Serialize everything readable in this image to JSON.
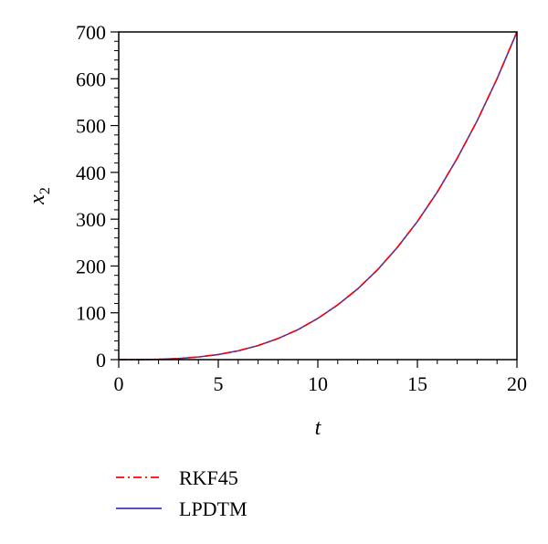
{
  "chart_data": {
    "type": "line",
    "xlabel": "t",
    "ylabel": {
      "main": "x",
      "subscript": "2"
    },
    "xlim": [
      0,
      20
    ],
    "ylim": [
      0,
      700
    ],
    "xticks": [
      0,
      5,
      10,
      15,
      20
    ],
    "yticks": [
      0,
      100,
      200,
      300,
      400,
      500,
      600,
      700
    ],
    "grid": false,
    "legend_position": "bottom-left, below plot",
    "series": [
      {
        "name": "RKF45",
        "color": "#ff0000",
        "style": "dash-dot",
        "x": [
          0,
          1,
          2,
          3,
          4,
          5,
          6,
          7,
          8,
          9,
          10,
          11,
          12,
          13,
          14,
          15,
          16,
          17,
          18,
          19,
          20
        ],
        "y": [
          0,
          0.1,
          0.7,
          2.3,
          5.6,
          10.9,
          18.8,
          30,
          45,
          64,
          88,
          117,
          151,
          192,
          240,
          295,
          358,
          430,
          510,
          600,
          700
        ]
      },
      {
        "name": "LPDTM",
        "color": "#3a3ab8",
        "style": "solid",
        "x": [
          0,
          1,
          2,
          3,
          4,
          5,
          6,
          7,
          8,
          9,
          10,
          11,
          12,
          13,
          14,
          15,
          16,
          17,
          18,
          19,
          20
        ],
        "y": [
          0,
          0.1,
          0.7,
          2.3,
          5.6,
          10.9,
          18.8,
          30,
          45,
          64,
          88,
          117,
          151,
          192,
          240,
          295,
          358,
          430,
          510,
          600,
          700
        ]
      }
    ]
  }
}
